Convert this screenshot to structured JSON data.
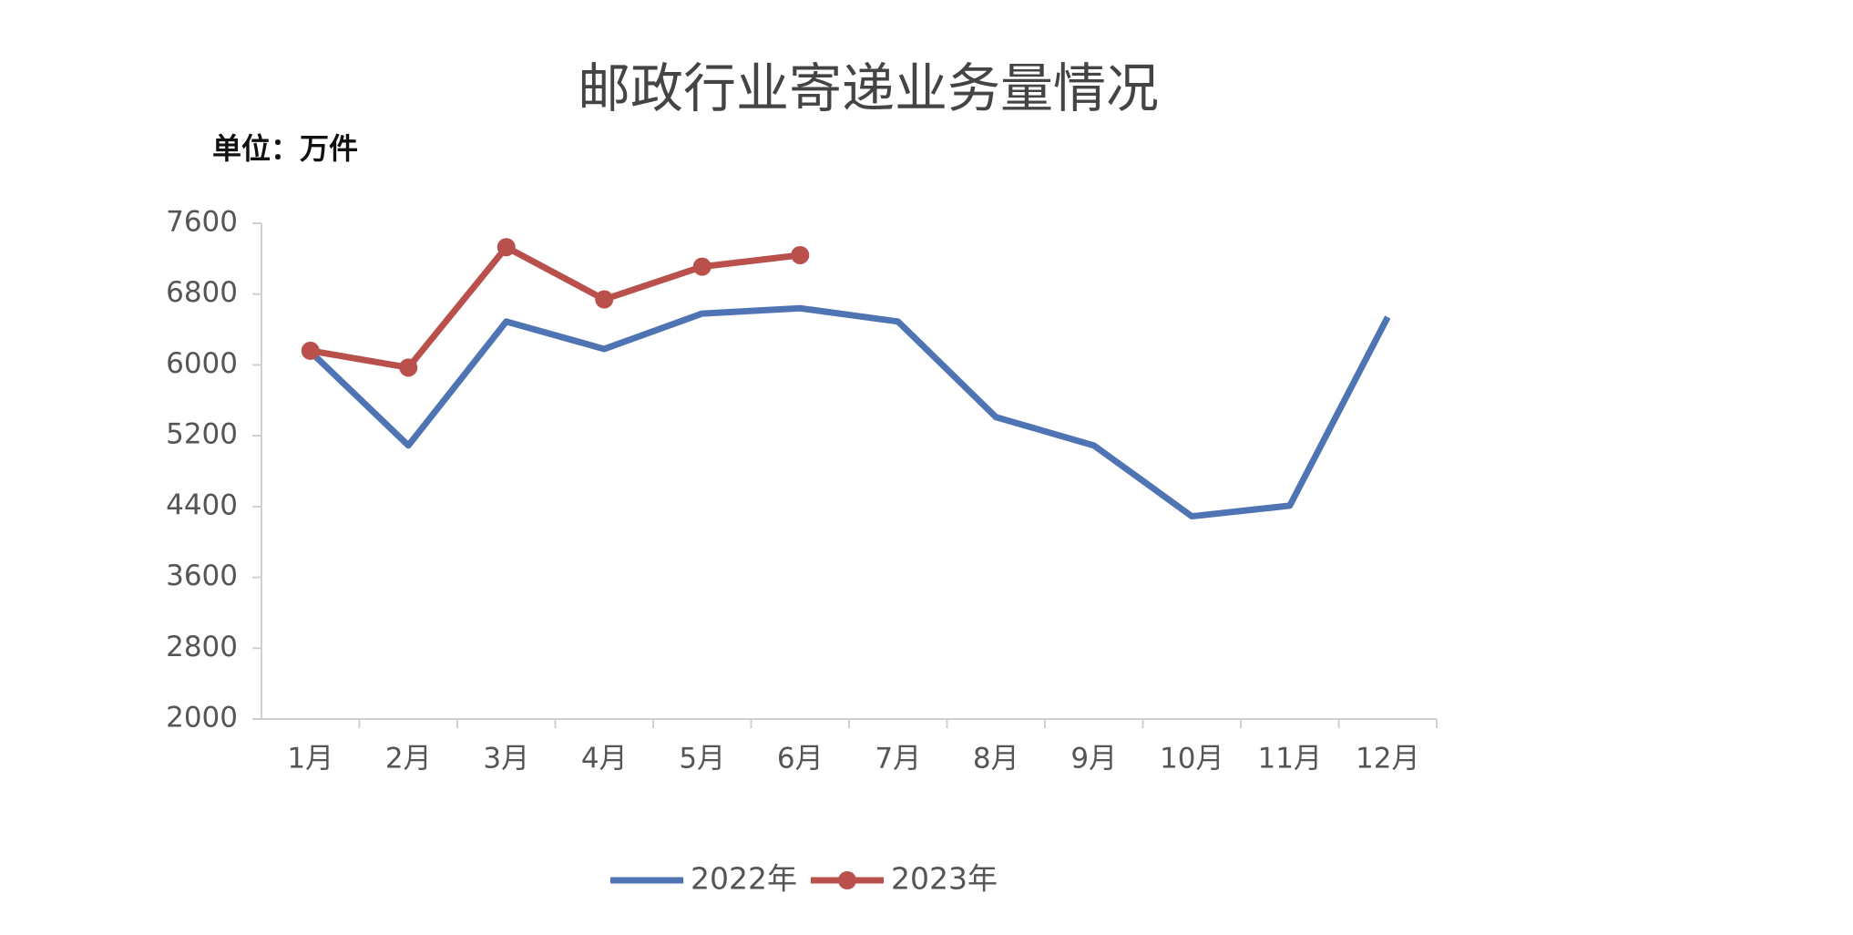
{
  "chart_data": {
    "type": "line",
    "title": "邮政行业寄递业务量情况",
    "subtitle": "单位：万件",
    "categories": [
      "1月",
      "2月",
      "3月",
      "4月",
      "5月",
      "6月",
      "7月",
      "8月",
      "9月",
      "10月",
      "11月",
      "12月"
    ],
    "series": [
      {
        "name": "2022年",
        "color": "#4f74b3",
        "marker": false,
        "values": [
          6150,
          5090,
          6490,
          6180,
          6580,
          6640,
          6490,
          5410,
          5090,
          4290,
          4410,
          6540
        ]
      },
      {
        "name": "2023年",
        "color": "#b9504c",
        "marker": true,
        "values": [
          6160,
          5970,
          7330,
          6740,
          7110,
          7240,
          null,
          null,
          null,
          null,
          null,
          null
        ]
      }
    ],
    "ylim": [
      2000,
      7600
    ],
    "yticks": [
      2000,
      2800,
      3600,
      4400,
      5200,
      6000,
      6800,
      7600
    ],
    "grid": false,
    "legend": "bottom"
  }
}
